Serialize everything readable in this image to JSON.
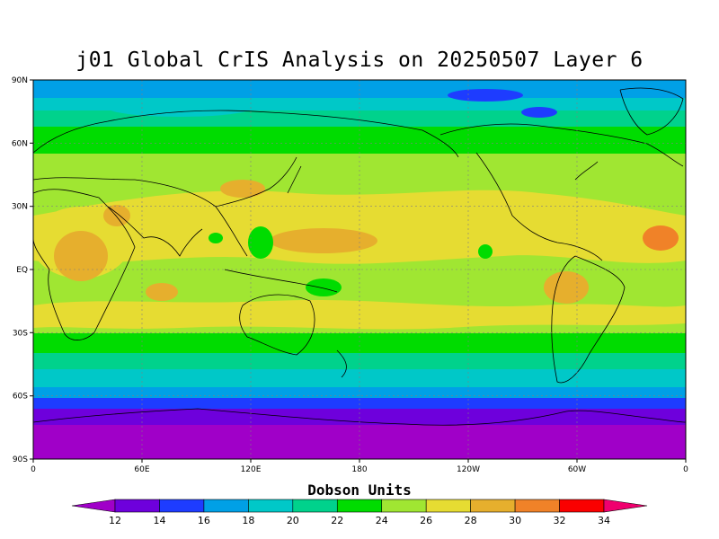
{
  "title": "j01 Global CrIS Analysis on 20250507 Layer 6",
  "colorbar": {
    "label": "Dobson Units",
    "ticks": [
      "12",
      "14",
      "16",
      "18",
      "20",
      "22",
      "24",
      "26",
      "28",
      "30",
      "32",
      "34"
    ],
    "colors": [
      "#a000c8",
      "#6e00dc",
      "#1e3cff",
      "#00a0e6",
      "#00c8c8",
      "#00d28c",
      "#00dc00",
      "#a0e632",
      "#e6dc32",
      "#e6af2d",
      "#f08228",
      "#fa0000",
      "#f0006e"
    ]
  },
  "axes": {
    "lat_labels": [
      "90N",
      "60N",
      "30N",
      "EQ",
      "30S",
      "60S",
      "90S"
    ],
    "lon_labels": [
      "0",
      "60E",
      "120E",
      "180",
      "120W",
      "60W",
      "0"
    ]
  }
}
